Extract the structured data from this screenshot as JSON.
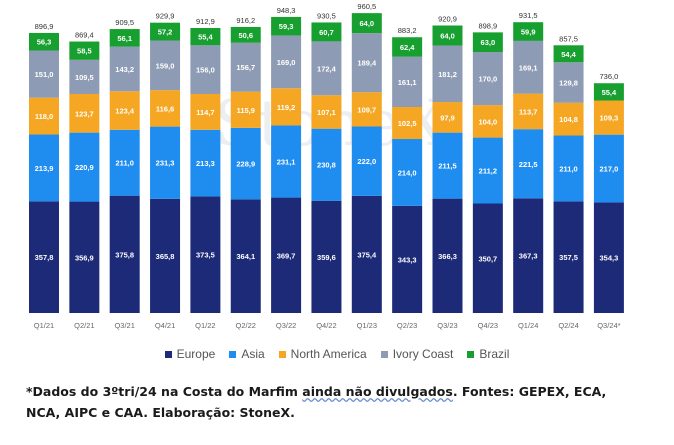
{
  "chart_data": {
    "type": "bar",
    "stacked": true,
    "categories": [
      "Q1/21",
      "Q2/21",
      "Q3/21",
      "Q4/21",
      "Q1/22",
      "Q2/22",
      "Q3/22",
      "Q4/22",
      "Q1/23",
      "Q2/23",
      "Q3/23",
      "Q4/23",
      "Q1/24",
      "Q2/24",
      "Q3/24*"
    ],
    "series": [
      {
        "name": "Europe",
        "color": "#1c2a78",
        "values": [
          357.8,
          356.9,
          375.8,
          365.8,
          373.5,
          364.1,
          369.7,
          359.6,
          375.4,
          343.3,
          366.3,
          350.7,
          367.3,
          357.5,
          354.3
        ]
      },
      {
        "name": "Asia",
        "color": "#1f8df0",
        "values": [
          213.9,
          220.9,
          211.0,
          231.3,
          213.3,
          228.9,
          231.1,
          230.8,
          222.0,
          214.0,
          211.5,
          211.2,
          221.5,
          211.0,
          217.0
        ]
      },
      {
        "name": "North America",
        "color": "#f5a623",
        "values": [
          118.0,
          123.7,
          123.4,
          116.6,
          114.7,
          115.9,
          119.2,
          107.1,
          109.7,
          102.5,
          97.9,
          104.0,
          113.7,
          104.8,
          109.3
        ]
      },
      {
        "name": "Ivory Coast",
        "color": "#8e9bb4",
        "values": [
          151.0,
          109.5,
          143.2,
          159.0,
          156.0,
          156.7,
          169.0,
          172.4,
          189.4,
          161.1,
          181.2,
          170.0,
          169.1,
          129.8,
          null
        ]
      },
      {
        "name": "Brazil",
        "color": "#17a02f",
        "values": [
          56.3,
          58.5,
          56.1,
          57.2,
          55.4,
          50.6,
          59.3,
          60.7,
          64.0,
          62.4,
          64.0,
          63.0,
          59.9,
          54.4,
          55.4
        ]
      }
    ],
    "labels": {
      "Europe": [
        "357,8",
        "356,9",
        "375,8",
        "365,8",
        "373,5",
        "364,1",
        "369,7",
        "359,6",
        "375,4",
        "343,3",
        "366,3",
        "350,7",
        "367,3",
        "357,5",
        "354,3"
      ],
      "Asia": [
        "213,9",
        "220,9",
        "211,0",
        "231,3",
        "213,3",
        "228,9",
        "231,1",
        "230,8",
        "222,0",
        "214,0",
        "211,5",
        "211,2",
        "221,5",
        "211,0",
        "217,0"
      ],
      "North America": [
        "118,0",
        "123,7",
        "123,4",
        "116,6",
        "114,7",
        "115,9",
        "119,2",
        "107,1",
        "109,7",
        "102,5",
        "97,9",
        "104,0",
        "113,7",
        "104,8",
        "109,3"
      ],
      "Ivory Coast": [
        "151,0",
        "109,5",
        "143,2",
        "159,0",
        "156,0",
        "156,7",
        "169,0",
        "172,4",
        "189,4",
        "161,1",
        "181,2",
        "170,0",
        "169,1",
        "129,8",
        ""
      ],
      "Brazil": [
        "56,3",
        "58,5",
        "56,1",
        "57,2",
        "55,4",
        "50,6",
        "59,3",
        "60,7",
        "64,0",
        "62,4",
        "64,0",
        "63,0",
        "59,9",
        "54,4",
        "55,4"
      ]
    },
    "totals": [
      "896,9",
      "869,4",
      "909,5",
      "929,9",
      "912,9",
      "916,2",
      "948,3",
      "930,5",
      "960,5",
      "883,2",
      "920,9",
      "898,9",
      "931,5",
      "857,5",
      "736,0"
    ],
    "title": "",
    "xlabel": "",
    "ylabel": "",
    "ylim": [
      0,
      1000
    ],
    "grid": false,
    "legend_position": "bottom"
  },
  "watermark": "StoneX",
  "footnote": {
    "part1": "*Dados do 3ºtri/24 na Costa do Marfim ",
    "underlined": "ainda não divulgados",
    "part2": ". Fontes: GEPEX, ECA, NCA, AIPC e CAA. Elaboração: StoneX."
  }
}
